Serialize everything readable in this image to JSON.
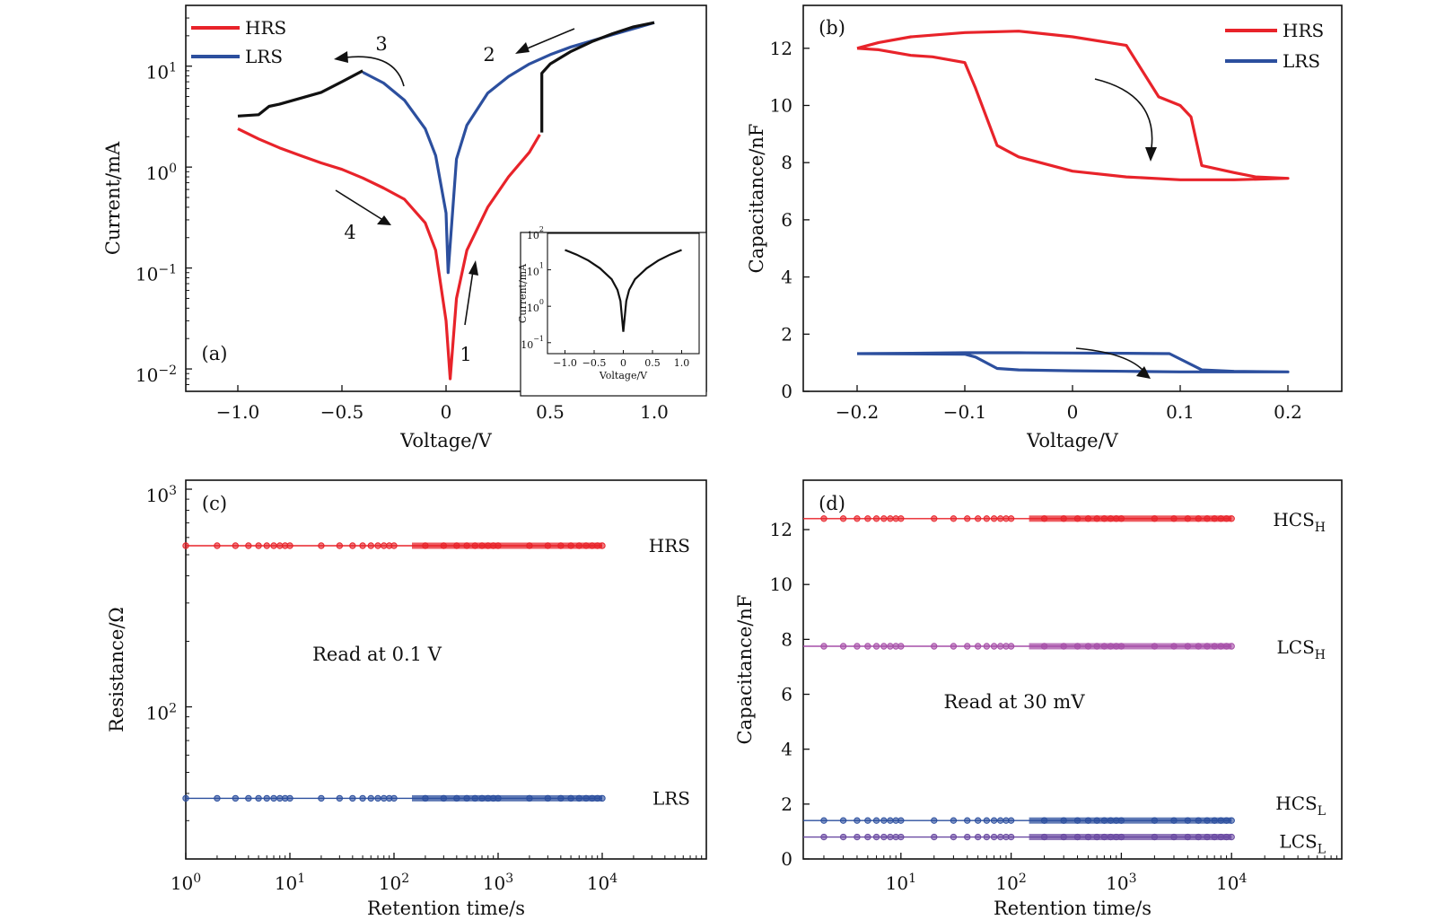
{
  "colors": {
    "hrs": "#e8232a",
    "lrs": "#2c4f9e",
    "black": "#111111",
    "purple": "#a64fa8",
    "purple_dark": "#6a4aa2"
  },
  "chart_data": [
    {
      "id": "a",
      "panel_label": "(a)",
      "type": "line",
      "xlabel": "Voltage/V",
      "ylabel": "Current/mA",
      "xlim": [
        -1.25,
        1.25
      ],
      "ylim": [
        0.006,
        40
      ],
      "yscale": "log",
      "xticks": [
        -1.0,
        -0.5,
        0,
        0.5,
        1.0
      ],
      "xtick_labels": [
        "−1.0",
        "−0.5",
        "0",
        "0.5",
        "1.0"
      ],
      "yticks": [
        0.01,
        0.1,
        1,
        10
      ],
      "ytick_labels": [
        {
          "b": "10",
          "e": "−2"
        },
        {
          "b": "10",
          "e": "−1"
        },
        {
          "b": "10",
          "e": "0"
        },
        {
          "b": "10",
          "e": "1"
        }
      ],
      "legend": [
        "HRS",
        "LRS"
      ],
      "legend_position": "top-left",
      "sweep_labels": [
        "1",
        "2",
        "3",
        "4"
      ],
      "series": [
        {
          "name": "HRS",
          "color_key": "hrs",
          "x": [
            -1.0,
            -0.9,
            -0.8,
            -0.7,
            -0.6,
            -0.5,
            -0.4,
            -0.3,
            -0.2,
            -0.1,
            -0.05,
            0.0,
            0.02,
            0.05,
            0.1,
            0.2,
            0.3,
            0.4,
            0.45
          ],
          "y": [
            2.4,
            1.9,
            1.55,
            1.3,
            1.1,
            0.95,
            0.78,
            0.62,
            0.48,
            0.28,
            0.15,
            0.03,
            0.008,
            0.05,
            0.15,
            0.4,
            0.8,
            1.4,
            2.1
          ]
        },
        {
          "name": "LRS",
          "color_key": "lrs",
          "x": [
            -0.4,
            -0.3,
            -0.2,
            -0.1,
            -0.05,
            0.0,
            0.01,
            0.05,
            0.1,
            0.2,
            0.3,
            0.4,
            0.5,
            0.6,
            0.7,
            0.8,
            0.9,
            1.0
          ],
          "y": [
            8.7,
            6.8,
            4.6,
            2.4,
            1.3,
            0.35,
            0.09,
            1.2,
            2.6,
            5.4,
            7.9,
            10.5,
            13.0,
            15.5,
            17.8,
            20.5,
            23.5,
            27.0
          ]
        },
        {
          "name": "",
          "color_key": "black",
          "x": [
            -1.0,
            -0.9,
            -0.85,
            -0.8,
            -0.6,
            -0.5,
            -0.4
          ],
          "y": [
            3.2,
            3.3,
            4.0,
            4.2,
            5.5,
            7.0,
            9.0
          ]
        },
        {
          "name": "",
          "color_key": "black",
          "x": [
            0.46,
            0.46,
            0.5,
            0.6,
            0.7,
            0.8,
            0.9,
            1.0
          ],
          "y": [
            2.2,
            8.5,
            10.5,
            14.0,
            17.5,
            21.0,
            24.5,
            27.0
          ]
        }
      ],
      "inset": {
        "type": "line",
        "xlabel": "Voltage/V",
        "ylabel": "Current/mA",
        "xlim": [
          -1.3,
          1.3
        ],
        "ylim": [
          0.05,
          100
        ],
        "yscale": "log",
        "xticks": [
          -1.0,
          -0.5,
          0,
          0.5,
          1.0
        ],
        "xtick_labels": [
          "−1.0",
          "−0.5",
          "0",
          "0.5",
          "1.0"
        ],
        "yticks": [
          0.1,
          1,
          10,
          100
        ],
        "ytick_labels": [
          {
            "b": "10",
            "e": "−1"
          },
          {
            "b": "10",
            "e": "0"
          },
          {
            "b": "10",
            "e": "1"
          },
          {
            "b": "10",
            "e": "2"
          }
        ],
        "series": [
          {
            "name": "",
            "color_key": "black",
            "x": [
              -1.0,
              -0.8,
              -0.6,
              -0.4,
              -0.2,
              -0.1,
              -0.05,
              0.0,
              0.05,
              0.1,
              0.2,
              0.4,
              0.6,
              0.8,
              1.0
            ],
            "y": [
              35,
              26,
              18,
              11,
              5.5,
              2.8,
              1.4,
              0.2,
              1.4,
              2.8,
              5.5,
              11,
              18,
              26,
              35
            ]
          }
        ]
      }
    },
    {
      "id": "b",
      "panel_label": "(b)",
      "type": "line",
      "xlabel": "Voltage/V",
      "ylabel": "Capacitance/nF",
      "xlim": [
        -0.25,
        0.25
      ],
      "ylim": [
        0,
        13.5
      ],
      "xticks": [
        -0.2,
        -0.1,
        0,
        0.1,
        0.2
      ],
      "xtick_labels": [
        "−0.2",
        "−0.1",
        "0",
        "0.1",
        "0.2"
      ],
      "yticks": [
        0,
        2,
        4,
        6,
        8,
        10,
        12
      ],
      "ytick_labels": [
        "0",
        "2",
        "4",
        "6",
        "8",
        "10",
        "12"
      ],
      "legend": [
        "HRS",
        "LRS"
      ],
      "legend_position": "top-right",
      "series": [
        {
          "name": "HRS",
          "color_key": "hrs",
          "x": [
            -0.2,
            -0.18,
            -0.15,
            -0.1,
            -0.05,
            0.0,
            0.05,
            0.06,
            0.08,
            0.1,
            0.11,
            0.12,
            0.15,
            0.17,
            0.2,
            0.15,
            0.1,
            0.05,
            0.0,
            -0.05,
            -0.07,
            -0.09,
            -0.1,
            -0.13,
            -0.15,
            -0.18,
            -0.2
          ],
          "y": [
            12.0,
            12.2,
            12.4,
            12.55,
            12.6,
            12.4,
            12.1,
            11.5,
            10.3,
            10.0,
            9.6,
            7.9,
            7.65,
            7.5,
            7.45,
            7.4,
            7.4,
            7.5,
            7.7,
            8.2,
            8.6,
            10.6,
            11.5,
            11.7,
            11.75,
            11.95,
            12.0
          ]
        },
        {
          "name": "LRS",
          "color_key": "lrs",
          "x": [
            -0.2,
            -0.15,
            -0.1,
            -0.05,
            0.0,
            0.05,
            0.09,
            0.12,
            0.15,
            0.2,
            0.1,
            0.05,
            0.0,
            -0.05,
            -0.07,
            -0.09,
            -0.1,
            -0.15,
            -0.2
          ],
          "y": [
            1.32,
            1.33,
            1.35,
            1.35,
            1.34,
            1.33,
            1.32,
            0.75,
            0.7,
            0.68,
            0.68,
            0.7,
            0.72,
            0.75,
            0.8,
            1.2,
            1.3,
            1.31,
            1.32
          ]
        }
      ]
    },
    {
      "id": "c",
      "panel_label": "(c)",
      "type": "scatter",
      "xlabel": "Retention time/s",
      "ylabel": "Resistance/Ω",
      "xlim": [
        1,
        100000
      ],
      "xscale": "log",
      "ylim": [
        20,
        1100
      ],
      "yscale": "log",
      "xticks": [
        1,
        10,
        100,
        1000,
        10000
      ],
      "xtick_labels": [
        {
          "b": "10",
          "e": "0"
        },
        {
          "b": "10",
          "e": "1"
        },
        {
          "b": "10",
          "e": "2"
        },
        {
          "b": "10",
          "e": "3"
        },
        {
          "b": "10",
          "e": "4"
        }
      ],
      "yticks": [
        100,
        1000
      ],
      "ytick_labels": [
        {
          "b": "10",
          "e": "2"
        },
        {
          "b": "10",
          "e": "3"
        }
      ],
      "annotation": "Read at  0.1 V",
      "series": [
        {
          "name": "HRS",
          "color_key": "hrs",
          "x_range": [
            1,
            10000
          ],
          "value": 550
        },
        {
          "name": "LRS",
          "color_key": "lrs",
          "x_range": [
            1,
            10000
          ],
          "value": 38
        }
      ]
    },
    {
      "id": "d",
      "panel_label": "(d)",
      "type": "scatter",
      "xlabel": "Retention time/s",
      "ylabel": "Capacitance/nF",
      "xlim": [
        1.3,
        100000
      ],
      "xscale": "log",
      "ylim": [
        0,
        13.8
      ],
      "xticks": [
        10,
        100,
        1000,
        10000
      ],
      "xtick_labels": [
        {
          "b": "10",
          "e": "1"
        },
        {
          "b": "10",
          "e": "2"
        },
        {
          "b": "10",
          "e": "3"
        },
        {
          "b": "10",
          "e": "4"
        }
      ],
      "yticks": [
        0,
        2,
        4,
        6,
        8,
        10,
        12
      ],
      "ytick_labels": [
        "0",
        "2",
        "4",
        "6",
        "8",
        "10",
        "12"
      ],
      "annotation": "Read at 30 mV",
      "series": [
        {
          "name": "HCS",
          "sub": "H",
          "color_key": "hrs",
          "x_range": [
            1.3,
            10000
          ],
          "value": 12.4
        },
        {
          "name": "LCS",
          "sub": "H",
          "color_key": "purple",
          "x_range": [
            1.3,
            10000
          ],
          "value": 7.75
        },
        {
          "name": "HCS",
          "sub": "L",
          "color_key": "lrs",
          "x_range": [
            1.3,
            10000
          ],
          "value": 1.4
        },
        {
          "name": "LCS",
          "sub": "L",
          "color_key": "purple_dark",
          "x_range": [
            1.3,
            10000
          ],
          "value": 0.8
        }
      ]
    }
  ]
}
